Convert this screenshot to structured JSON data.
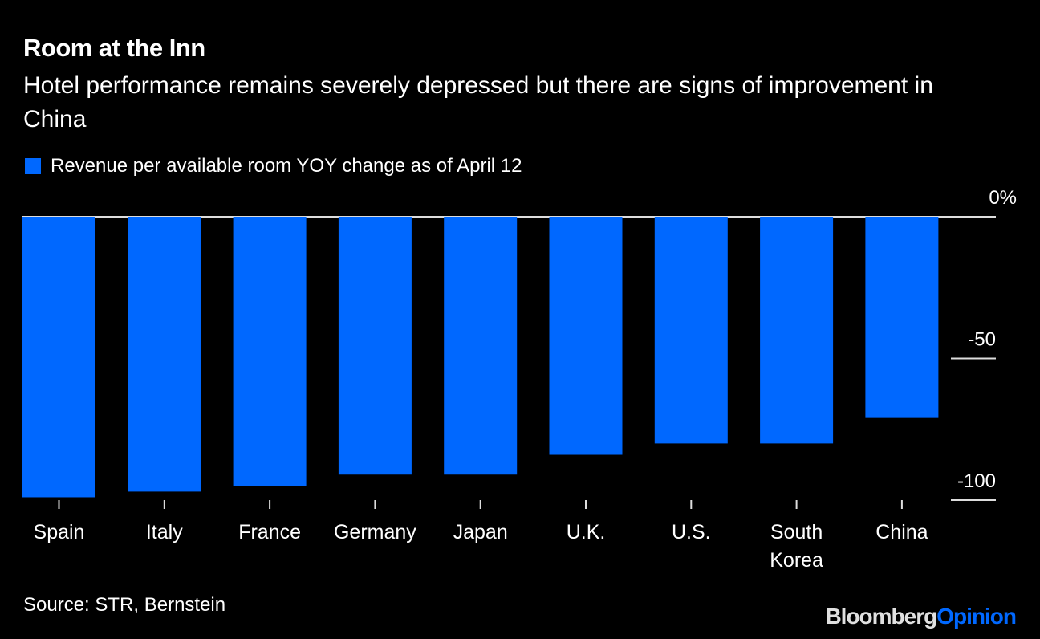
{
  "header": {
    "title": "Room at the Inn",
    "subtitle": "Hotel performance remains severely depressed but there are signs of improvement in China"
  },
  "legend": {
    "label": "Revenue per available room YOY change as of April 12"
  },
  "footer": {
    "source": "Source: STR, Bernstein",
    "logo_part1": "Bloomberg",
    "logo_part2": "Opinion"
  },
  "colors": {
    "bar": "#0068ff",
    "background": "#000000",
    "text": "#ffffff",
    "gridline": "#dddddd"
  },
  "chart_data": {
    "type": "bar",
    "title": "Room at the Inn",
    "subtitle": "Hotel performance remains severely depressed but there are signs of improvement in China",
    "categories": [
      "Spain",
      "Italy",
      "France",
      "Germany",
      "Japan",
      "U.K.",
      "U.S.",
      "South Korea",
      "China"
    ],
    "category_lines": [
      [
        "Spain"
      ],
      [
        "Italy"
      ],
      [
        "France"
      ],
      [
        "Germany"
      ],
      [
        "Japan"
      ],
      [
        "U.K."
      ],
      [
        "U.S."
      ],
      [
        "South",
        "Korea"
      ],
      [
        "China"
      ]
    ],
    "series": [
      {
        "name": "Revenue per available room YOY change as of April 12",
        "values": [
          -99,
          -97,
          -95,
          -91,
          -91,
          -84,
          -80,
          -80,
          -71
        ]
      }
    ],
    "ylim": [
      -100,
      0
    ],
    "yticks": [
      0,
      -50,
      -100
    ],
    "ytick_labels": [
      "0%",
      "-50",
      "-100"
    ],
    "xlabel": "",
    "ylabel": "",
    "y_axis_position": "right",
    "legend_position": "top-left",
    "grid": true
  }
}
